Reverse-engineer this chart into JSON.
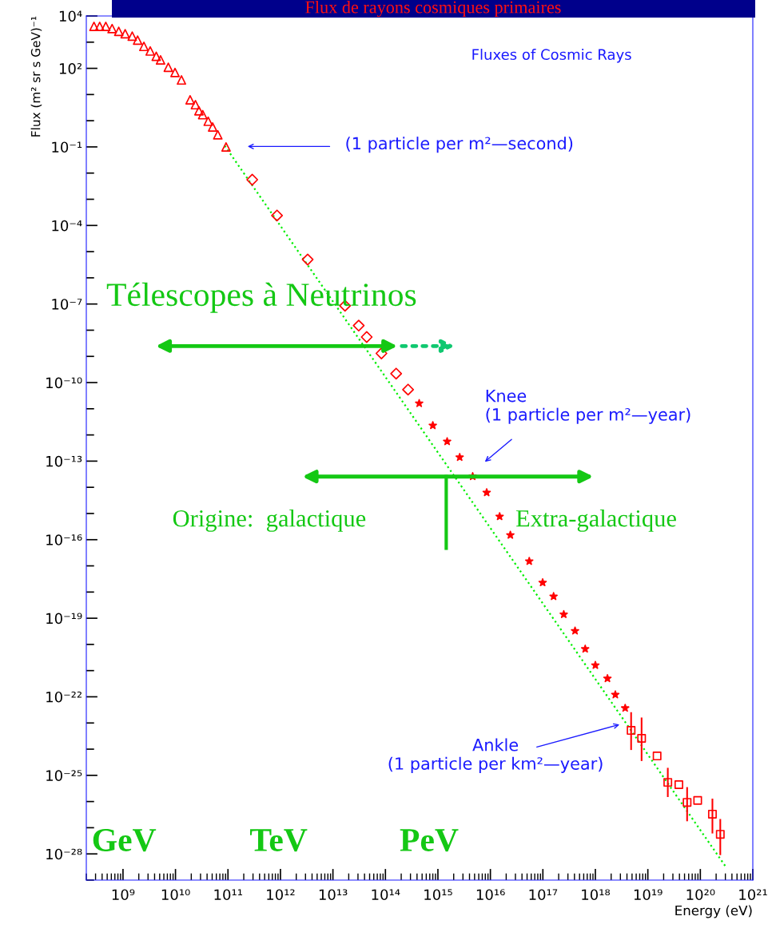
{
  "chart_data": {
    "type": "scatter",
    "title": "Flux de rayons cosmiques primaires",
    "subtitle": "Fluxes of Cosmic Rays",
    "xlabel": "Energy (eV)",
    "ylabel": "Flux (m² sr s GeV)⁻¹",
    "log": "xy",
    "xlim": [
      200000000.0,
      1e+21
    ],
    "ylim": [
      1e-29,
      10000.0
    ],
    "xticks": [
      {
        "value": 1000000000.0,
        "label": "10⁹"
      },
      {
        "value": 10000000000.0,
        "label": "10¹⁰"
      },
      {
        "value": 100000000000.0,
        "label": "10¹¹"
      },
      {
        "value": 1000000000000.0,
        "label": "10¹²"
      },
      {
        "value": 10000000000000.0,
        "label": "10¹³"
      },
      {
        "value": 100000000000000.0,
        "label": "10¹⁴"
      },
      {
        "value": 1000000000000000.0,
        "label": "10¹⁵"
      },
      {
        "value": 1e+16,
        "label": "10¹⁶"
      },
      {
        "value": 1e+17,
        "label": "10¹⁷"
      },
      {
        "value": 1e+18,
        "label": "10¹⁸"
      },
      {
        "value": 1e+19,
        "label": "10¹⁹"
      },
      {
        "value": 1e+20,
        "label": "10²⁰"
      },
      {
        "value": 1e+21,
        "label": "10²¹"
      }
    ],
    "yticks": [
      {
        "value": 10000.0,
        "label": "10⁴"
      },
      {
        "value": 100.0,
        "label": "10²"
      },
      {
        "value": 0.1,
        "label": "10⁻¹"
      },
      {
        "value": 0.0001,
        "label": "10⁻⁴"
      },
      {
        "value": 1e-07,
        "label": "10⁻⁷"
      },
      {
        "value": 1e-10,
        "label": "10⁻¹⁰"
      },
      {
        "value": 1e-13,
        "label": "10⁻¹³"
      },
      {
        "value": 1e-16,
        "label": "10⁻¹⁶"
      },
      {
        "value": 1e-19,
        "label": "10⁻¹⁹"
      },
      {
        "value": 1e-22,
        "label": "10⁻²²"
      },
      {
        "value": 1e-25,
        "label": "10⁻²⁵"
      },
      {
        "value": 1e-28,
        "label": "10⁻²⁸"
      }
    ],
    "grid": false,
    "legend": false,
    "annotations": [
      "(1 particle per m²—second)",
      "Knee\n(1 particle per m²—year)",
      "Ankle\n(1 particle per km²—year)",
      "Télescopes à Neutrinos",
      "Origine:  galactique",
      "Extra-galactique",
      "GeV",
      "TeV",
      "PeV"
    ],
    "series": [
      {
        "marker": "triangle",
        "color": "#ff0000",
        "x": [
          280000000.0,
          360000000.0,
          470000000.0,
          620000000.0,
          830000000.0,
          1100000000.0,
          1500000000.0,
          1900000000.0,
          2500000000.0,
          3300000000.0,
          4300000000.0,
          5200000000.0,
          7300000000.0,
          9800000000.0,
          13000000000.0,
          19000000000.0,
          24000000000.0,
          28000000000.0,
          33000000000.0,
          42000000000.0,
          51000000000.0,
          64000000000.0,
          92000000000.0
        ],
        "values": [
          4000.0,
          4000.0,
          4000.0,
          3300.0,
          2600.0,
          2100.0,
          1700.0,
          1200.0,
          690,
          460,
          290,
          210,
          110,
          70,
          36,
          6.3,
          4.1,
          2.4,
          1.7,
          0.95,
          0.58,
          0.29,
          0.1
        ]
      },
      {
        "marker": "diamond",
        "color": "#ff0000",
        "x": [
          290000000000.0,
          860000000000.0,
          3300000000000.0,
          17000000000000.0,
          31000000000000.0,
          44000000000000.0,
          84000000000000.0,
          160000000000000.0,
          270000000000000.0
        ],
        "values": [
          0.0056,
          0.00024,
          5e-06,
          8.6e-08,
          1.5e-08,
          5.5e-09,
          1.3e-09,
          2.2e-10,
          5.4e-11
        ]
      },
      {
        "marker": "star",
        "color": "#ff0000",
        "x": [
          440000000000000.0,
          800000000000000.0,
          1500000000000000.0,
          2600000000000000.0,
          4600000000000000.0,
          8500000000000000.0,
          1.5e+16,
          2.4e+16,
          5.5e+16,
          9.9e+16,
          1.6e+17,
          2.5e+17,
          4.1e+17,
          6.4e+17,
          1e+18,
          1.7e+18,
          2.4e+18,
          3.7e+18
        ],
        "values": [
          1.6e-11,
          2.3e-12,
          5.6e-13,
          1.4e-13,
          2.6e-14,
          6.3e-15,
          7.7e-16,
          1.5e-16,
          1.5e-17,
          2.3e-18,
          6.8e-19,
          1.4e-19,
          3.3e-20,
          6.7e-21,
          1.6e-21,
          5e-22,
          1.2e-22,
          3.7e-23
        ]
      },
      {
        "marker": "square",
        "color": "#ff0000",
        "x": [
          4.8e+18,
          7.6e+18,
          1.5e+19,
          2.4e+19,
          3.9e+19,
          5.6e+19,
          8.9e+19,
          1.7e+20,
          2.4e+20
        ],
        "values": [
          5.2e-24,
          2.6e-24,
          5.5e-25,
          5.4e-26,
          4.4e-26,
          9.3e-27,
          1.1e-26,
          3.3e-27,
          5.6e-28
        ],
        "errors": [
          [
            1e-24,
            2.4e-23
          ],
          [
            3.8e-25,
            1.5e-23
          ],
          null,
          [
            1.6e-26,
            1.8e-25
          ],
          null,
          [
            1.9e-27,
            3.3e-26
          ],
          null,
          [
            6.5e-28,
            1.2e-26
          ],
          [
            9.7e-29,
            2e-27
          ]
        ]
      },
      {
        "type": "line",
        "line_style": "dotted",
        "marker": "none",
        "color": "#00ee00",
        "x": [
          87000000000.0,
          3e+20
        ],
        "values": [
          0.11,
          3.4e-29
        ]
      }
    ]
  }
}
